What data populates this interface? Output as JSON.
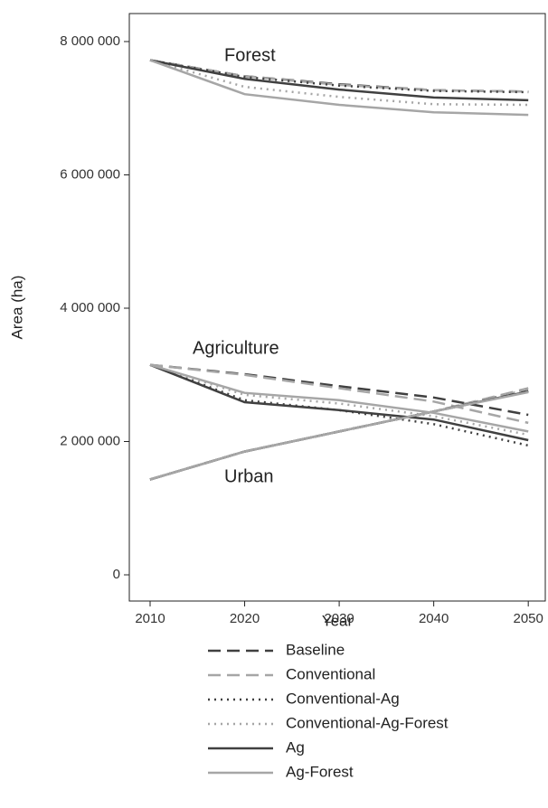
{
  "chart_data": {
    "type": "line",
    "xlabel": "Year",
    "ylabel": "Area (ha)",
    "groups": [
      "Forest",
      "Agriculture",
      "Urban"
    ],
    "x": [
      2010,
      2020,
      2030,
      2040,
      2050
    ],
    "xlim": [
      2007.8,
      2051.8
    ],
    "xticks": [
      2010,
      2020,
      2030,
      2040,
      2050
    ],
    "ylim": [
      -393000,
      8420000
    ],
    "yticks": [
      0,
      {
        "value": 2000000,
        "label": "2 000 000"
      },
      {
        "value": 4000000,
        "label": "4 000 000"
      },
      {
        "value": 6000000,
        "label": "6 000 000"
      },
      {
        "value": 8000000,
        "label": "8 000 000"
      }
    ],
    "series": [
      {
        "name": "Baseline",
        "color": "#404040",
        "dash": "dashed",
        "values": [
          [
            7720000,
            7480000,
            7360000,
            7270000,
            7250000
          ],
          [
            3150000,
            3010000,
            2830000,
            2660000,
            2400000
          ],
          [
            1430000,
            1850000,
            2150000,
            2450000,
            2760000
          ]
        ]
      },
      {
        "name": "Conventional",
        "color": "#a6a6a6",
        "dash": "dashed",
        "values": [
          [
            7720000,
            7480000,
            7350000,
            7270000,
            7250000
          ],
          [
            3150000,
            3000000,
            2800000,
            2600000,
            2280000
          ],
          [
            1430000,
            1850000,
            2150000,
            2450000,
            2800000
          ]
        ]
      },
      {
        "name": "Conventional-Ag",
        "color": "#404040",
        "dash": "dotted",
        "values": [
          [
            7720000,
            7470000,
            7340000,
            7260000,
            7240000
          ],
          [
            3150000,
            2620000,
            2470000,
            2260000,
            1940000
          ],
          [
            1430000,
            1850000,
            2150000,
            2450000,
            2780000
          ]
        ]
      },
      {
        "name": "Conventional-Ag-Forest",
        "color": "#a6a6a6",
        "dash": "dotted",
        "values": [
          [
            7720000,
            7320000,
            7170000,
            7060000,
            7050000
          ],
          [
            3150000,
            2700000,
            2570000,
            2380000,
            2100000
          ],
          [
            1430000,
            1850000,
            2150000,
            2450000,
            2780000
          ]
        ]
      },
      {
        "name": "Ag",
        "color": "#404040",
        "dash": "solid",
        "values": [
          [
            7720000,
            7440000,
            7280000,
            7160000,
            7120000
          ],
          [
            3150000,
            2590000,
            2470000,
            2330000,
            2020000
          ],
          [
            1430000,
            1850000,
            2150000,
            2450000,
            2750000
          ]
        ]
      },
      {
        "name": "Ag-Forest",
        "color": "#a6a6a6",
        "dash": "solid",
        "values": [
          [
            7720000,
            7210000,
            7050000,
            6940000,
            6900000
          ],
          [
            3150000,
            2730000,
            2620000,
            2430000,
            2150000
          ],
          [
            1430000,
            1850000,
            2150000,
            2450000,
            2740000
          ]
        ]
      }
    ]
  }
}
